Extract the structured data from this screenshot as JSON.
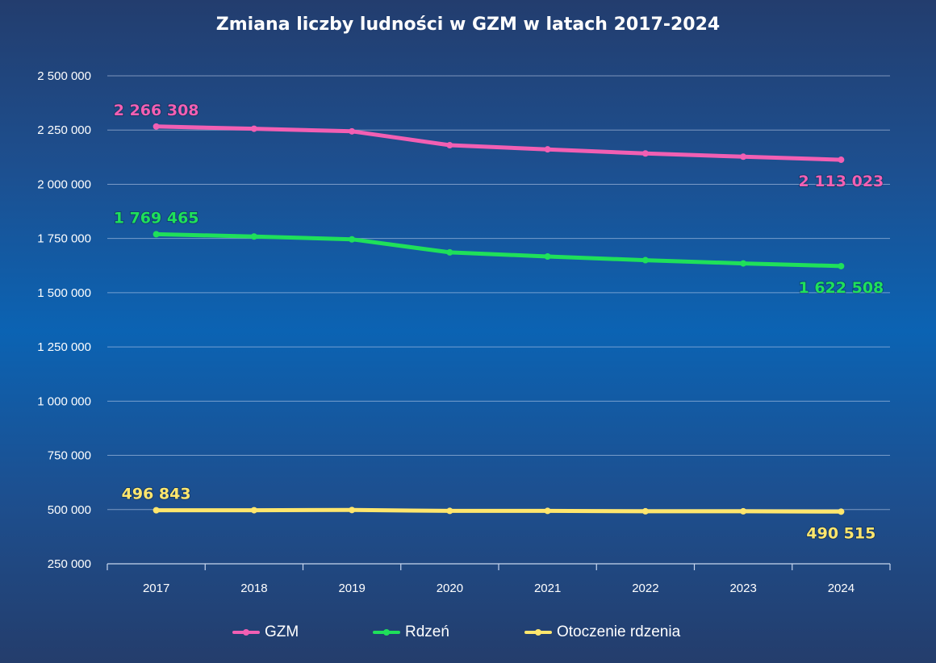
{
  "chart_data": {
    "type": "line",
    "title": "Zmiana liczby ludności w GZM w latach 2017-2024",
    "xlabel": "",
    "ylabel": "",
    "categories": [
      "2017",
      "2018",
      "2019",
      "2020",
      "2021",
      "2022",
      "2023",
      "2024"
    ],
    "ylim": [
      250000,
      2500000
    ],
    "yticks": [
      250000,
      500000,
      750000,
      1000000,
      1250000,
      1500000,
      1750000,
      2000000,
      2250000,
      2500000
    ],
    "ytick_labels": [
      "250 000",
      "500 000",
      "750 000",
      "1 000 000",
      "1 250 000",
      "1 500 000",
      "1 750 000",
      "2 000 000",
      "2 250 000",
      "2 500 000"
    ],
    "grid": true,
    "legend_position": "bottom",
    "series": [
      {
        "name": "GZM",
        "color": "#f25fb3",
        "values": [
          2266308,
          2256000,
          2244000,
          2180000,
          2161000,
          2142000,
          2127000,
          2113023
        ],
        "data_labels": [
          {
            "index": 0,
            "text": "2 266 308"
          },
          {
            "index": 7,
            "text": "2 113 023"
          }
        ]
      },
      {
        "name": "Rdzeń",
        "color": "#1fe05a",
        "values": [
          1769465,
          1759000,
          1746000,
          1686000,
          1667000,
          1650000,
          1635000,
          1622508
        ],
        "data_labels": [
          {
            "index": 0,
            "text": "1 769 465"
          },
          {
            "index": 7,
            "text": "1 622 508"
          }
        ]
      },
      {
        "name": "Otoczenie rdzenia",
        "color": "#ffe66d",
        "values": [
          496843,
          497000,
          498000,
          494000,
          494000,
          492000,
          492000,
          490515
        ],
        "data_labels": [
          {
            "index": 0,
            "text": "496 843"
          },
          {
            "index": 7,
            "text": "490 515"
          }
        ]
      }
    ]
  }
}
